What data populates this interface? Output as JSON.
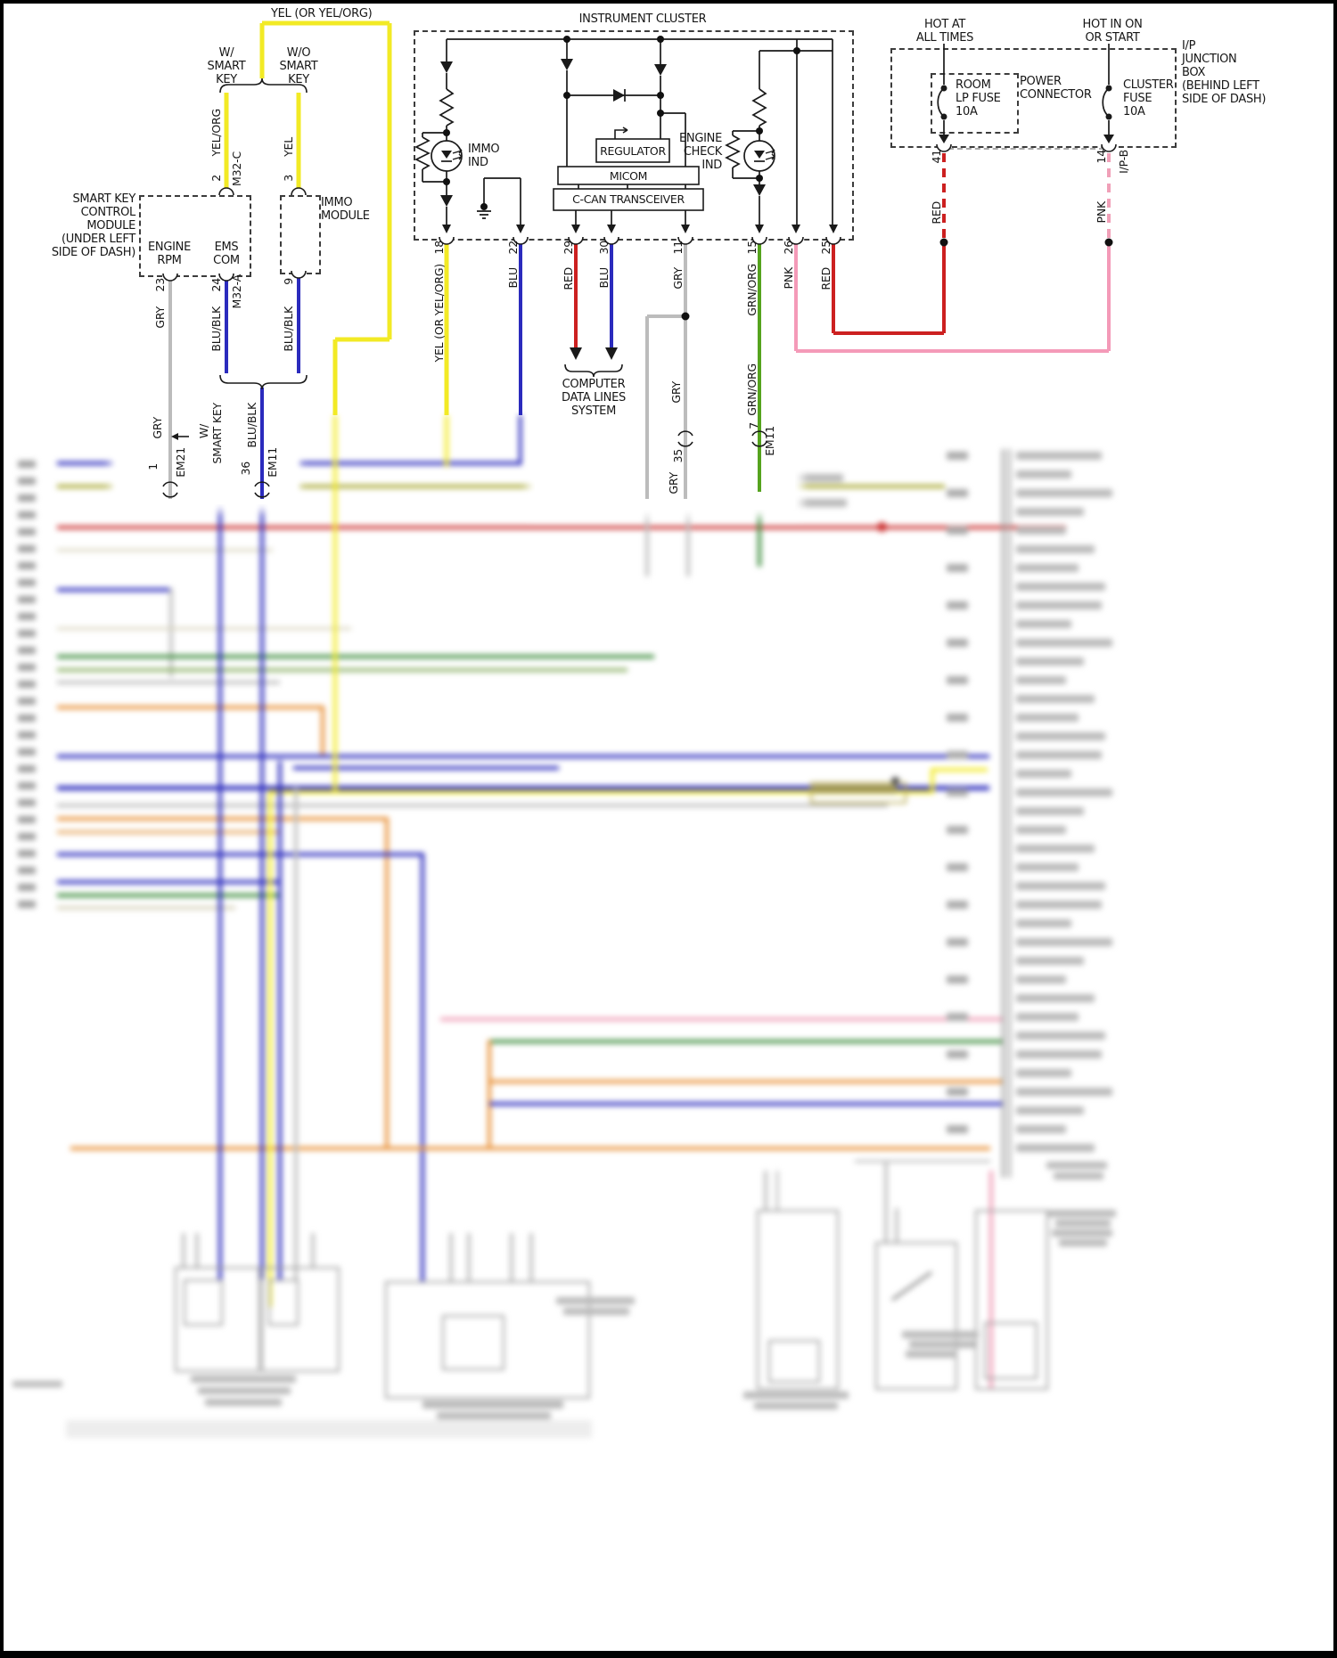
{
  "diagram": {
    "top": {
      "yel_feed_label": "YEL (OR YEL/ORG)",
      "w_smart_key": "W/\nSMART\nKEY",
      "wo_smart_key": "W/O\nSMART\nKEY"
    },
    "smart_key_module": {
      "name_label": "SMART KEY\nCONTROL\nMODULE\n(UNDER LEFT\nSIDE OF DASH)",
      "engine_rpm": "ENGINE\nRPM",
      "ems_com": "EMS\nCOM"
    },
    "immo_module_label": "IMMO\nMODULE",
    "cluster": {
      "title": "INSTRUMENT CLUSTER",
      "immo_ind": "IMMO\nIND",
      "engine_check_ind": "ENGINE\nCHECK\nIND",
      "regulator": "REGULATOR",
      "micom": "MICOM",
      "ccan_transceiver": "C-CAN TRANSCEIVER"
    },
    "junction_box": {
      "hot_at_all_times": "HOT AT\nALL TIMES",
      "hot_in_on_or_start": "HOT IN ON\nOR START",
      "room_lp_fuse": "ROOM\nLP FUSE\n10A",
      "power_connector": "POWER\nCONNECTOR",
      "cluster_fuse": "CLUSTER\nFUSE\n10A",
      "label": "I/P\nJUNCTION\nBOX\n(BEHIND LEFT\nSIDE OF DASH)"
    },
    "computer_data_lines": "COMPUTER\nDATA LINES\nSYSTEM",
    "pins": {
      "p2_num": "2",
      "p2_color": "YEL/ORG",
      "p2_conn": "M32-C",
      "p3_num": "3",
      "p3_color": "YEL",
      "p23_num": "23",
      "p23_color": "GRY",
      "p24_num": "24",
      "p24_color": "BLU/BLK",
      "p24_conn": "M32-A",
      "p9_num": "9",
      "p9_color": "BLU/BLK",
      "merge_color": "BLU/BLK",
      "w_smart_key_l1": "W/",
      "w_smart_key_l2": "SMART KEY",
      "em21_color": "GRY",
      "em21_num": "1",
      "em21_name": "EM21",
      "em11l_num": "36",
      "em11l_name": "EM11",
      "p18_num": "18",
      "p18_color": "YEL (OR YEL/ORG)",
      "p22_num": "22",
      "p22_color": "BLU",
      "p29_num": "29",
      "p29_color": "RED",
      "p30_num": "30",
      "p30_color": "BLU",
      "p11_num": "11",
      "p11_color": "GRY",
      "p15_num": "15",
      "p15_color": "GRN/ORG",
      "p26_num": "26",
      "p26_color": "PNK",
      "p25_num": "25",
      "p25_color": "RED",
      "p41_num": "41",
      "p41_color": "RED",
      "p14_num": "14",
      "p14_color": "PNK",
      "p14_conn": "I/P-B",
      "g35_above": "GRY",
      "g35_num": "35",
      "g35_below": "GRY",
      "g7_color": "GRN/ORG",
      "g7_num": "7",
      "g7_name": "EM11"
    },
    "colors": {
      "yellow": "#f2ea25",
      "blue": "#2b2bbd",
      "red": "#cc2020",
      "gray_wire": "#bcbcbc",
      "green": "#55a31e",
      "pink": "#f49ab8",
      "olive": "#a8a832",
      "orange": "#e8923a",
      "black": "#1a1a1a"
    }
  }
}
